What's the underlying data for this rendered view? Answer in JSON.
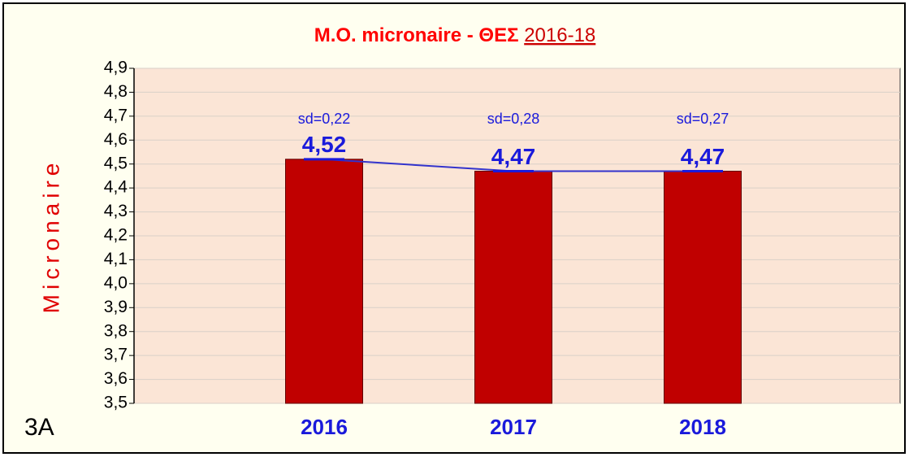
{
  "chart_data": {
    "type": "bar",
    "title": [
      "M.O. micronaire - ΘΕΣ",
      "2016-18"
    ],
    "panel_label": "3A",
    "y_label": "Micronaire",
    "categories": [
      "2016",
      "2017",
      "2018"
    ],
    "values": [
      4.52,
      4.47,
      4.47
    ],
    "value_labels": [
      "4,52",
      "4,47",
      "4,47"
    ],
    "annotations": [
      "sd=0,22",
      "sd=0,28",
      "sd=0,27"
    ],
    "color": "#c00000",
    "line_color": "#3333cc",
    "ylim": [
      3.5,
      4.9
    ],
    "yticks": [
      {
        "value": 3.5,
        "label": "3,5"
      },
      {
        "value": 3.6,
        "label": "3,6"
      },
      {
        "value": 3.7,
        "label": "3,7"
      },
      {
        "value": 3.8,
        "label": "3,8"
      },
      {
        "value": 3.9,
        "label": "3,9"
      },
      {
        "value": 4.0,
        "label": "4,0"
      },
      {
        "value": 4.1,
        "label": "4,1"
      },
      {
        "value": 4.2,
        "label": "4,2"
      },
      {
        "value": 4.3,
        "label": "4,3"
      },
      {
        "value": 4.4,
        "label": "4,4"
      },
      {
        "value": 4.5,
        "label": "4,5"
      },
      {
        "value": 4.6,
        "label": "4,6"
      },
      {
        "value": 4.7,
        "label": "4,7"
      },
      {
        "value": 4.8,
        "label": "4,8"
      },
      {
        "value": 4.9,
        "label": "4,9"
      }
    ],
    "grid": true
  }
}
